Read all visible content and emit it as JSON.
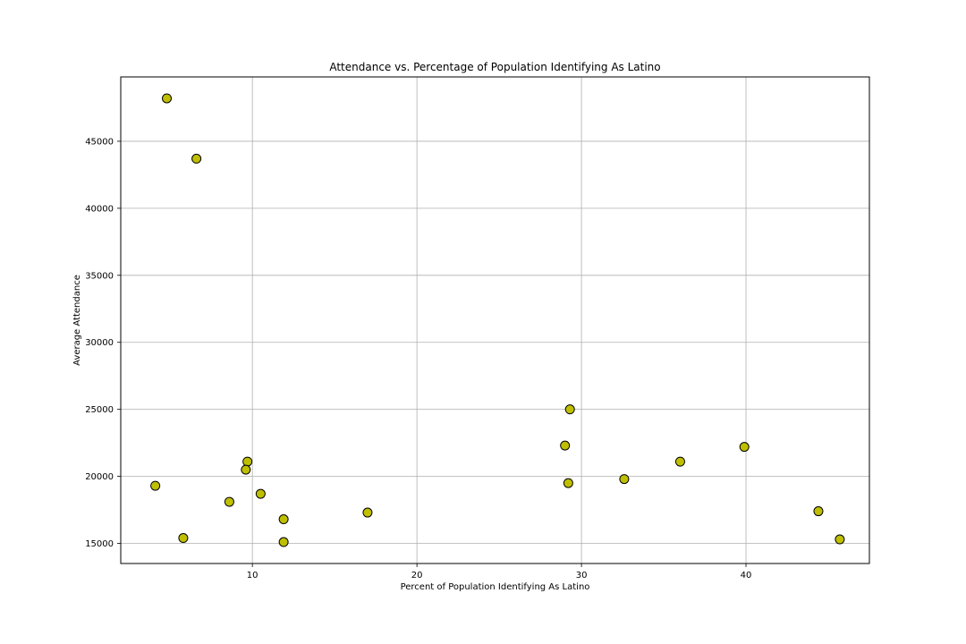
{
  "chart_data": {
    "type": "scatter",
    "title": "Attendance vs. Percentage of Population Identifying As Latino",
    "xlabel": "Percent of Population Identifying As Latino",
    "ylabel": "Average Attendance",
    "xlim": [
      2.0,
      47.5
    ],
    "ylim": [
      13500,
      49800
    ],
    "xticks": [
      10,
      20,
      30,
      40
    ],
    "yticks": [
      15000,
      20000,
      25000,
      30000,
      35000,
      40000,
      45000
    ],
    "grid": true,
    "marker_color": "#bfbf00",
    "marker_edge_color": "#000000",
    "points": [
      {
        "x": 4.8,
        "y": 48200
      },
      {
        "x": 6.6,
        "y": 43700
      },
      {
        "x": 4.1,
        "y": 19300
      },
      {
        "x": 5.8,
        "y": 15400
      },
      {
        "x": 8.6,
        "y": 18100
      },
      {
        "x": 9.7,
        "y": 21100
      },
      {
        "x": 9.6,
        "y": 20500
      },
      {
        "x": 10.5,
        "y": 18700
      },
      {
        "x": 11.9,
        "y": 16800
      },
      {
        "x": 11.9,
        "y": 15100
      },
      {
        "x": 17.0,
        "y": 17300
      },
      {
        "x": 29.3,
        "y": 25000
      },
      {
        "x": 29.0,
        "y": 22300
      },
      {
        "x": 29.2,
        "y": 19500
      },
      {
        "x": 32.6,
        "y": 19800
      },
      {
        "x": 36.0,
        "y": 21100
      },
      {
        "x": 39.9,
        "y": 22200
      },
      {
        "x": 44.4,
        "y": 17400
      },
      {
        "x": 45.7,
        "y": 15300
      }
    ]
  }
}
